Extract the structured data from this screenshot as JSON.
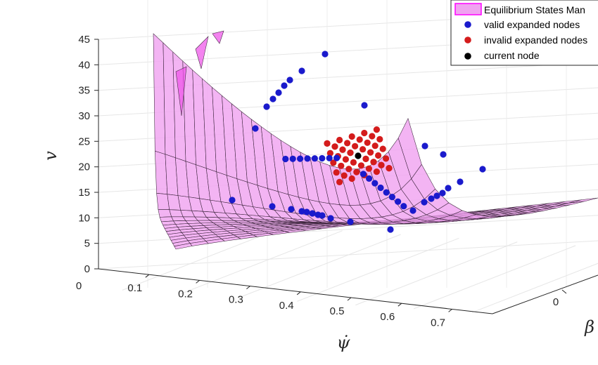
{
  "chart_data": {
    "type": "scatter",
    "surface_type": "surface",
    "axes": {
      "x": {
        "label": "ψ̇",
        "ticks": [
          "0",
          "0.1",
          "0.2",
          "0.3",
          "0.4",
          "0.5",
          "0.6",
          "0.7"
        ],
        "range": [
          0,
          0.75
        ]
      },
      "y": {
        "label": "β",
        "ticks": [
          "0"
        ]
      },
      "z": {
        "label": "v",
        "ticks": [
          "0",
          "5",
          "10",
          "15",
          "20",
          "25",
          "30",
          "35",
          "40",
          "45"
        ],
        "range": [
          0,
          45
        ]
      }
    },
    "grid": true,
    "legend": {
      "position": "top-right",
      "entries": [
        {
          "label": "Equilibrium States Man",
          "marker": "patch",
          "color": "#f0a3f0",
          "edge": "#ff00ff"
        },
        {
          "label": "valid expanded nodes",
          "marker": "dot",
          "color": "#1a1acc"
        },
        {
          "label": "invalid expanded nodes",
          "marker": "dot",
          "color": "#d41c1c"
        },
        {
          "label": "current node",
          "marker": "dot",
          "color": "#000000"
        }
      ]
    },
    "series": [
      {
        "name": "valid expanded nodes",
        "color": "#1a1acc"
      },
      {
        "name": "invalid expanded nodes",
        "color": "#d41c1c"
      },
      {
        "name": "current node",
        "color": "#000000"
      }
    ]
  }
}
